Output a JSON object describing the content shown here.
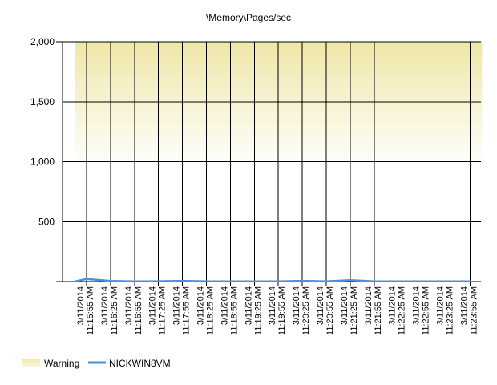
{
  "chart_data": {
    "type": "line",
    "title": "\\Memory\\Pages/sec",
    "ylim": [
      0,
      2000
    ],
    "y_ticks": [
      {
        "value": 500,
        "label": "500"
      },
      {
        "value": 1000,
        "label": "1,000"
      },
      {
        "value": 1500,
        "label": "1,500"
      },
      {
        "value": 2000,
        "label": "2,000"
      }
    ],
    "x": [
      "3/11/2014 11:15:55 AM",
      "3/11/2014 11:16:25 AM",
      "3/11/2014 11:16:55 AM",
      "3/11/2014 11:17:25 AM",
      "3/11/2014 11:17:55 AM",
      "3/11/2014 11:18:25 AM",
      "3/11/2014 11:18:55 AM",
      "3/11/2014 11:19:25 AM",
      "3/11/2014 11:19:55 AM",
      "3/11/2014 11:20:25 AM",
      "3/11/2014 11:20:55 AM",
      "3/11/2014 11:21:25 AM",
      "3/11/2014 11:21:55 AM",
      "3/11/2014 11:22:25 AM",
      "3/11/2014 11:22:55 AM",
      "3/11/2014 11:23:25 AM",
      "3/11/2014 11:23:55 AM"
    ],
    "x_tick_lines": [
      [
        "3/11/2014",
        "11:15:55 AM"
      ],
      [
        "3/11/2014",
        "11:16:25 AM"
      ],
      [
        "3/11/2014",
        "11:16:55 AM"
      ],
      [
        "3/11/2014",
        "11:17:25 AM"
      ],
      [
        "3/11/2014",
        "11:17:55 AM"
      ],
      [
        "3/11/2014",
        "11:18:25 AM"
      ],
      [
        "3/11/2014",
        "11:18:55 AM"
      ],
      [
        "3/11/2014",
        "11:19:25 AM"
      ],
      [
        "3/11/2014",
        "11:19:55 AM"
      ],
      [
        "3/11/2014",
        "11:20:25 AM"
      ],
      [
        "3/11/2014",
        "11:20:55 AM"
      ],
      [
        "3/11/2014",
        "11:21:25 AM"
      ],
      [
        "3/11/2014",
        "11:21:55 AM"
      ],
      [
        "3/11/2014",
        "11:22:25 AM"
      ],
      [
        "3/11/2014",
        "11:22:55 AM"
      ],
      [
        "3/11/2014",
        "11:23:25 AM"
      ],
      [
        "3/11/2014",
        "11:23:55 AM"
      ]
    ],
    "series": [
      {
        "name": "NICKWIN8VM",
        "color": "#4a8fe0",
        "points": [
          {
            "t": "3/11/2014 11:15:40 AM",
            "y": 0
          },
          {
            "t": "3/11/2014 11:15:55 AM",
            "y": 22
          },
          {
            "t": "3/11/2014 11:16:25 AM",
            "y": 5
          },
          {
            "t": "3/11/2014 11:16:55 AM",
            "y": 2
          },
          {
            "t": "3/11/2014 11:17:25 AM",
            "y": 3
          },
          {
            "t": "3/11/2014 11:17:55 AM",
            "y": 6
          },
          {
            "t": "3/11/2014 11:18:25 AM",
            "y": 2
          },
          {
            "t": "3/11/2014 11:18:55 AM",
            "y": 2
          },
          {
            "t": "3/11/2014 11:19:25 AM",
            "y": 2
          },
          {
            "t": "3/11/2014 11:19:55 AM",
            "y": 2
          },
          {
            "t": "3/11/2014 11:20:25 AM",
            "y": 6
          },
          {
            "t": "3/11/2014 11:20:55 AM",
            "y": 2
          },
          {
            "t": "3/11/2014 11:21:25 AM",
            "y": 12
          },
          {
            "t": "3/11/2014 11:21:55 AM",
            "y": 2
          },
          {
            "t": "3/11/2014 11:22:25 AM",
            "y": 2
          },
          {
            "t": "3/11/2014 11:22:55 AM",
            "y": 2
          },
          {
            "t": "3/11/2014 11:23:25 AM",
            "y": 2
          },
          {
            "t": "3/11/2014 11:23:55 AM",
            "y": 2
          }
        ]
      }
    ],
    "warning_band": {
      "name": "Warning",
      "from": 1000,
      "to": 2000,
      "t_start": "3/11/2014 11:15:40 AM",
      "t_end": "3/11/2014 11:24:10 AM",
      "color": "#efe7a8"
    },
    "grid": true,
    "legend": "bottom-left"
  }
}
